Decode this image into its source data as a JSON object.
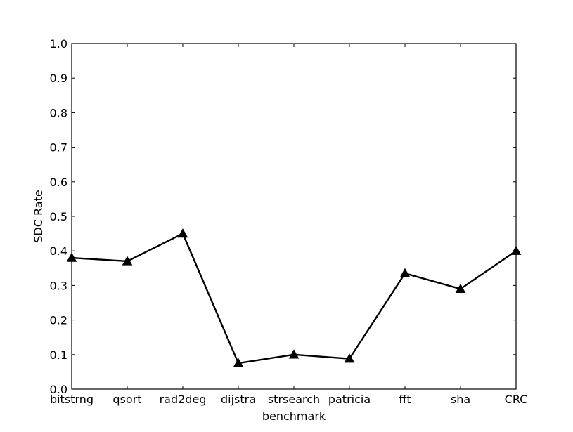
{
  "chart_data": {
    "type": "line",
    "xlabel": "benchmark",
    "ylabel": "SDC Rate",
    "ylim": [
      0.0,
      1.0
    ],
    "yticks": [
      "0.0",
      "0.1",
      "0.2",
      "0.3",
      "0.4",
      "0.5",
      "0.6",
      "0.7",
      "0.8",
      "0.9",
      "1.0"
    ],
    "categories": [
      "bitstrng",
      "qsort",
      "rad2deg",
      "dijstra",
      "strsearch",
      "patricia",
      "fft",
      "sha",
      "CRC"
    ],
    "series": [
      {
        "values": [
          0.38,
          0.37,
          0.45,
          0.075,
          0.1,
          0.088,
          0.335,
          0.29,
          0.4
        ],
        "color": "#000000",
        "marker": "triangle-up"
      }
    ],
    "grid": false,
    "legend": "none"
  }
}
